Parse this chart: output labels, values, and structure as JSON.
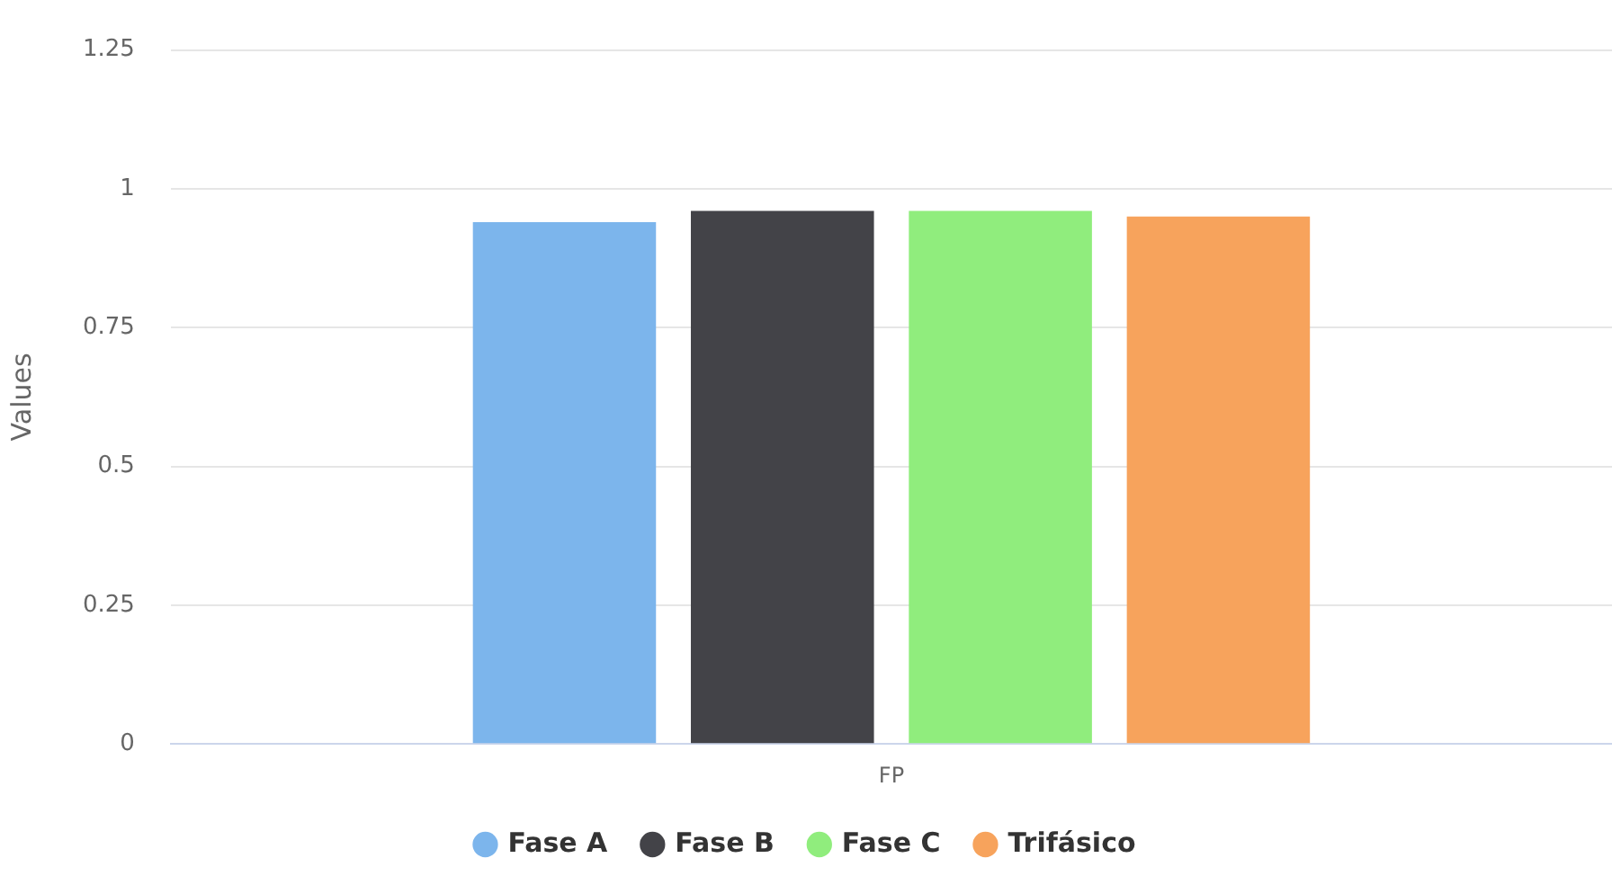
{
  "chart_data": {
    "type": "bar",
    "ylabel": "Values",
    "categories": [
      "FP"
    ],
    "series": [
      {
        "name": "Fase A",
        "color": "#7cb5ec",
        "values": [
          0.94
        ]
      },
      {
        "name": "Fase B",
        "color": "#434348",
        "values": [
          0.96
        ]
      },
      {
        "name": "Fase C",
        "color": "#90ed7d",
        "values": [
          0.96
        ]
      },
      {
        "name": "Trifásico",
        "color": "#f7a35c",
        "values": [
          0.95
        ]
      }
    ],
    "ylim": [
      0,
      1.25
    ],
    "yticks": [
      0,
      0.25,
      0.5,
      0.75,
      1,
      1.25
    ],
    "grid": "y",
    "legend": "bottom"
  }
}
